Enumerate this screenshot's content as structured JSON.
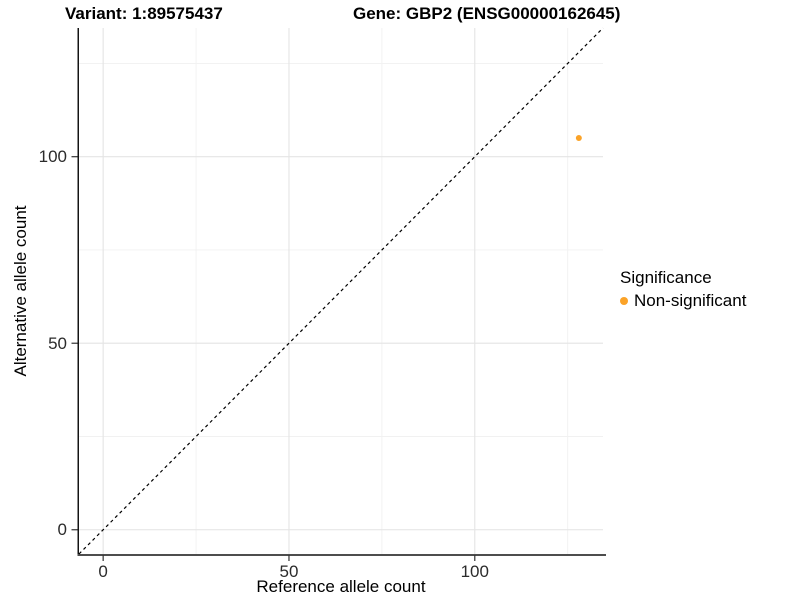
{
  "titles": {
    "variant": "Variant: 1:89575437",
    "gene": "Gene: GBP2 (ENSG00000162645)"
  },
  "legend": {
    "title": "Significance",
    "items": [
      {
        "label": "Non-significant",
        "color": "#FBA328"
      }
    ]
  },
  "chart_data": {
    "type": "scatter",
    "title_left": "Variant: 1:89575437",
    "title_right": "Gene: GBP2 (ENSG00000162645)",
    "xlabel": "Reference allele count",
    "ylabel": "Alternative allele count",
    "xlim": [
      -6.5,
      134.5
    ],
    "ylim": [
      -6.5,
      134.5
    ],
    "x_major_ticks": [
      0,
      50,
      100
    ],
    "y_major_ticks": [
      0,
      50,
      100
    ],
    "x_minor_gridlines": [
      25,
      75,
      125
    ],
    "y_minor_gridlines": [
      25,
      75,
      125
    ],
    "grid": "major_and_minor",
    "legend_position": "right",
    "series": [
      {
        "name": "Non-significant",
        "color": "#FBA328",
        "points": [
          {
            "x": 128,
            "y": 105
          }
        ],
        "point_radius_px": 3
      }
    ],
    "reference_line": {
      "kind": "identity y=x",
      "style": "dashed",
      "color": "#000000",
      "from": [
        -6.5,
        -6.5
      ],
      "to": [
        134.5,
        134.5
      ]
    }
  },
  "style": {
    "grid_major_color": "#e4e4e4",
    "grid_minor_color": "#f1f1f1",
    "axis_line_left_color": "#141414",
    "axis_line_bottom_color": "#4d4d4d",
    "tick_color": "#333333",
    "tick_label_color": "#2b2b2b"
  }
}
